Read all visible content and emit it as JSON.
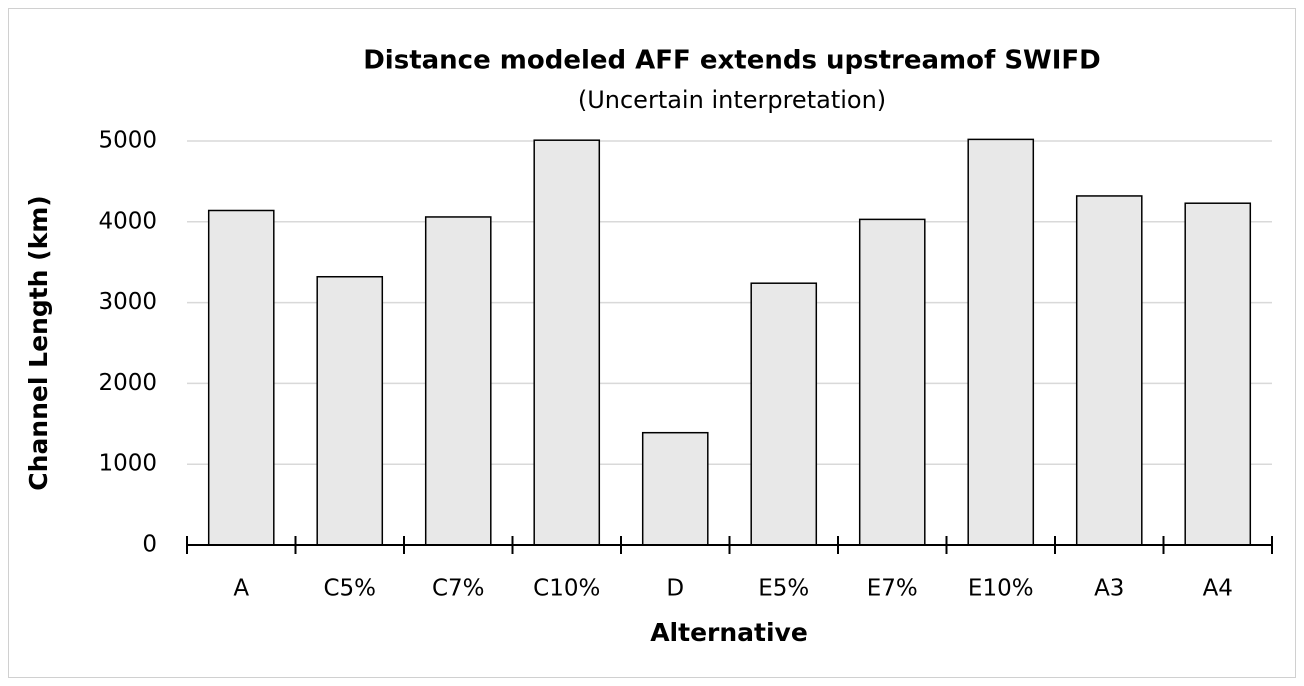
{
  "chart_data": {
    "type": "bar",
    "title": "Distance modeled AFF extends upstreamof SWIFD",
    "subtitle": "(Uncertain interpretation)",
    "x_label": "Alternative",
    "y_label": "Channel Length (km)",
    "categories": [
      "A",
      "C5%",
      "C7%",
      "C10%",
      "D",
      "E5%",
      "E7%",
      "E10%",
      "A3",
      "A4"
    ],
    "values": [
      4140,
      3320,
      4060,
      5010,
      1390,
      3240,
      4030,
      5020,
      4320,
      4230
    ],
    "color": "#e8e8e8",
    "ylim": [
      0,
      5000
    ],
    "yticks": [
      0,
      1000,
      2000,
      3000,
      4000,
      5000
    ],
    "grid": true
  }
}
